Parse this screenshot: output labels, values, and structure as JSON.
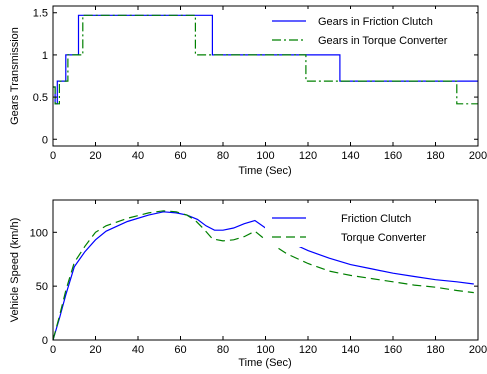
{
  "chart_data": [
    {
      "type": "line",
      "xlabel": "Time (Sec)",
      "ylabel": "Gears Transmission",
      "xlim": [
        0,
        200
      ],
      "ylim": [
        -0.08,
        1.58
      ],
      "xticks": [
        0,
        20,
        40,
        60,
        80,
        100,
        120,
        140,
        160,
        180,
        200
      ],
      "yticks": [
        0,
        0.5,
        1,
        1.5
      ],
      "ytick_labels": [
        "0",
        "0.5",
        "1",
        "1.5"
      ],
      "grid": false,
      "legend_position": "top-right",
      "series": [
        {
          "name": "Gears in Friction Clutch",
          "color": "#0000ff",
          "style": "solid",
          "x": [
            0,
            1,
            1,
            2,
            2,
            4,
            4,
            6,
            6,
            12,
            12,
            75,
            75,
            135,
            135,
            200
          ],
          "y": [
            0.62,
            0.62,
            0.42,
            0.42,
            0.69,
            0.69,
            0.69,
            0.69,
            1.0,
            1.0,
            1.47,
            1.47,
            1.0,
            1.0,
            0.69,
            0.69
          ]
        },
        {
          "name": "Gears in Torque Converter",
          "color": "#008000",
          "style": "dashdot",
          "x": [
            0,
            1,
            1,
            3,
            3,
            7,
            7,
            14,
            14,
            67,
            67,
            119,
            119,
            190,
            190,
            200
          ],
          "y": [
            0.62,
            0.62,
            0.42,
            0.42,
            0.69,
            0.69,
            1.0,
            1.0,
            1.47,
            1.47,
            1.0,
            1.0,
            0.69,
            0.69,
            0.42,
            0.42
          ]
        }
      ]
    },
    {
      "type": "line",
      "xlabel": "Time (Sec)",
      "ylabel": "Vehicle Speed (km/h)",
      "xlim": [
        0,
        200
      ],
      "ylim": [
        0,
        130
      ],
      "xticks": [
        0,
        20,
        40,
        60,
        80,
        100,
        120,
        140,
        160,
        180,
        200
      ],
      "yticks": [
        0,
        50,
        100
      ],
      "ytick_labels": [
        "0",
        "50",
        "100"
      ],
      "grid": false,
      "legend_position": "top-right",
      "series": [
        {
          "name": "Friction Clutch",
          "color": "#0000ff",
          "style": "solid",
          "x": [
            0,
            3,
            6,
            10,
            15,
            20,
            25,
            35,
            45,
            52,
            58,
            63,
            68,
            72,
            76,
            80,
            85,
            90,
            95,
            100,
            110,
            120,
            130,
            140,
            150,
            160,
            170,
            180,
            190,
            198
          ],
          "y": [
            0,
            20,
            42,
            68,
            82,
            93,
            101,
            110,
            116,
            119,
            118,
            116,
            112,
            106,
            102,
            102,
            104,
            108,
            111,
            104,
            92,
            83,
            76,
            70,
            66,
            62,
            59,
            56,
            54,
            52
          ]
        },
        {
          "name": "Torque Converter",
          "color": "#008000",
          "style": "dashdash",
          "x": [
            0,
            3,
            6,
            10,
            15,
            20,
            25,
            35,
            45,
            52,
            58,
            63,
            67,
            71,
            75,
            80,
            85,
            90,
            95,
            100,
            110,
            120,
            130,
            140,
            150,
            160,
            170,
            180,
            190,
            198
          ],
          "y": [
            0,
            22,
            46,
            72,
            87,
            100,
            106,
            113,
            118,
            120,
            119,
            116,
            111,
            103,
            94,
            92,
            93,
            96,
            101,
            93,
            80,
            71,
            64,
            60,
            57,
            54,
            51,
            49,
            46,
            44
          ]
        }
      ]
    }
  ]
}
